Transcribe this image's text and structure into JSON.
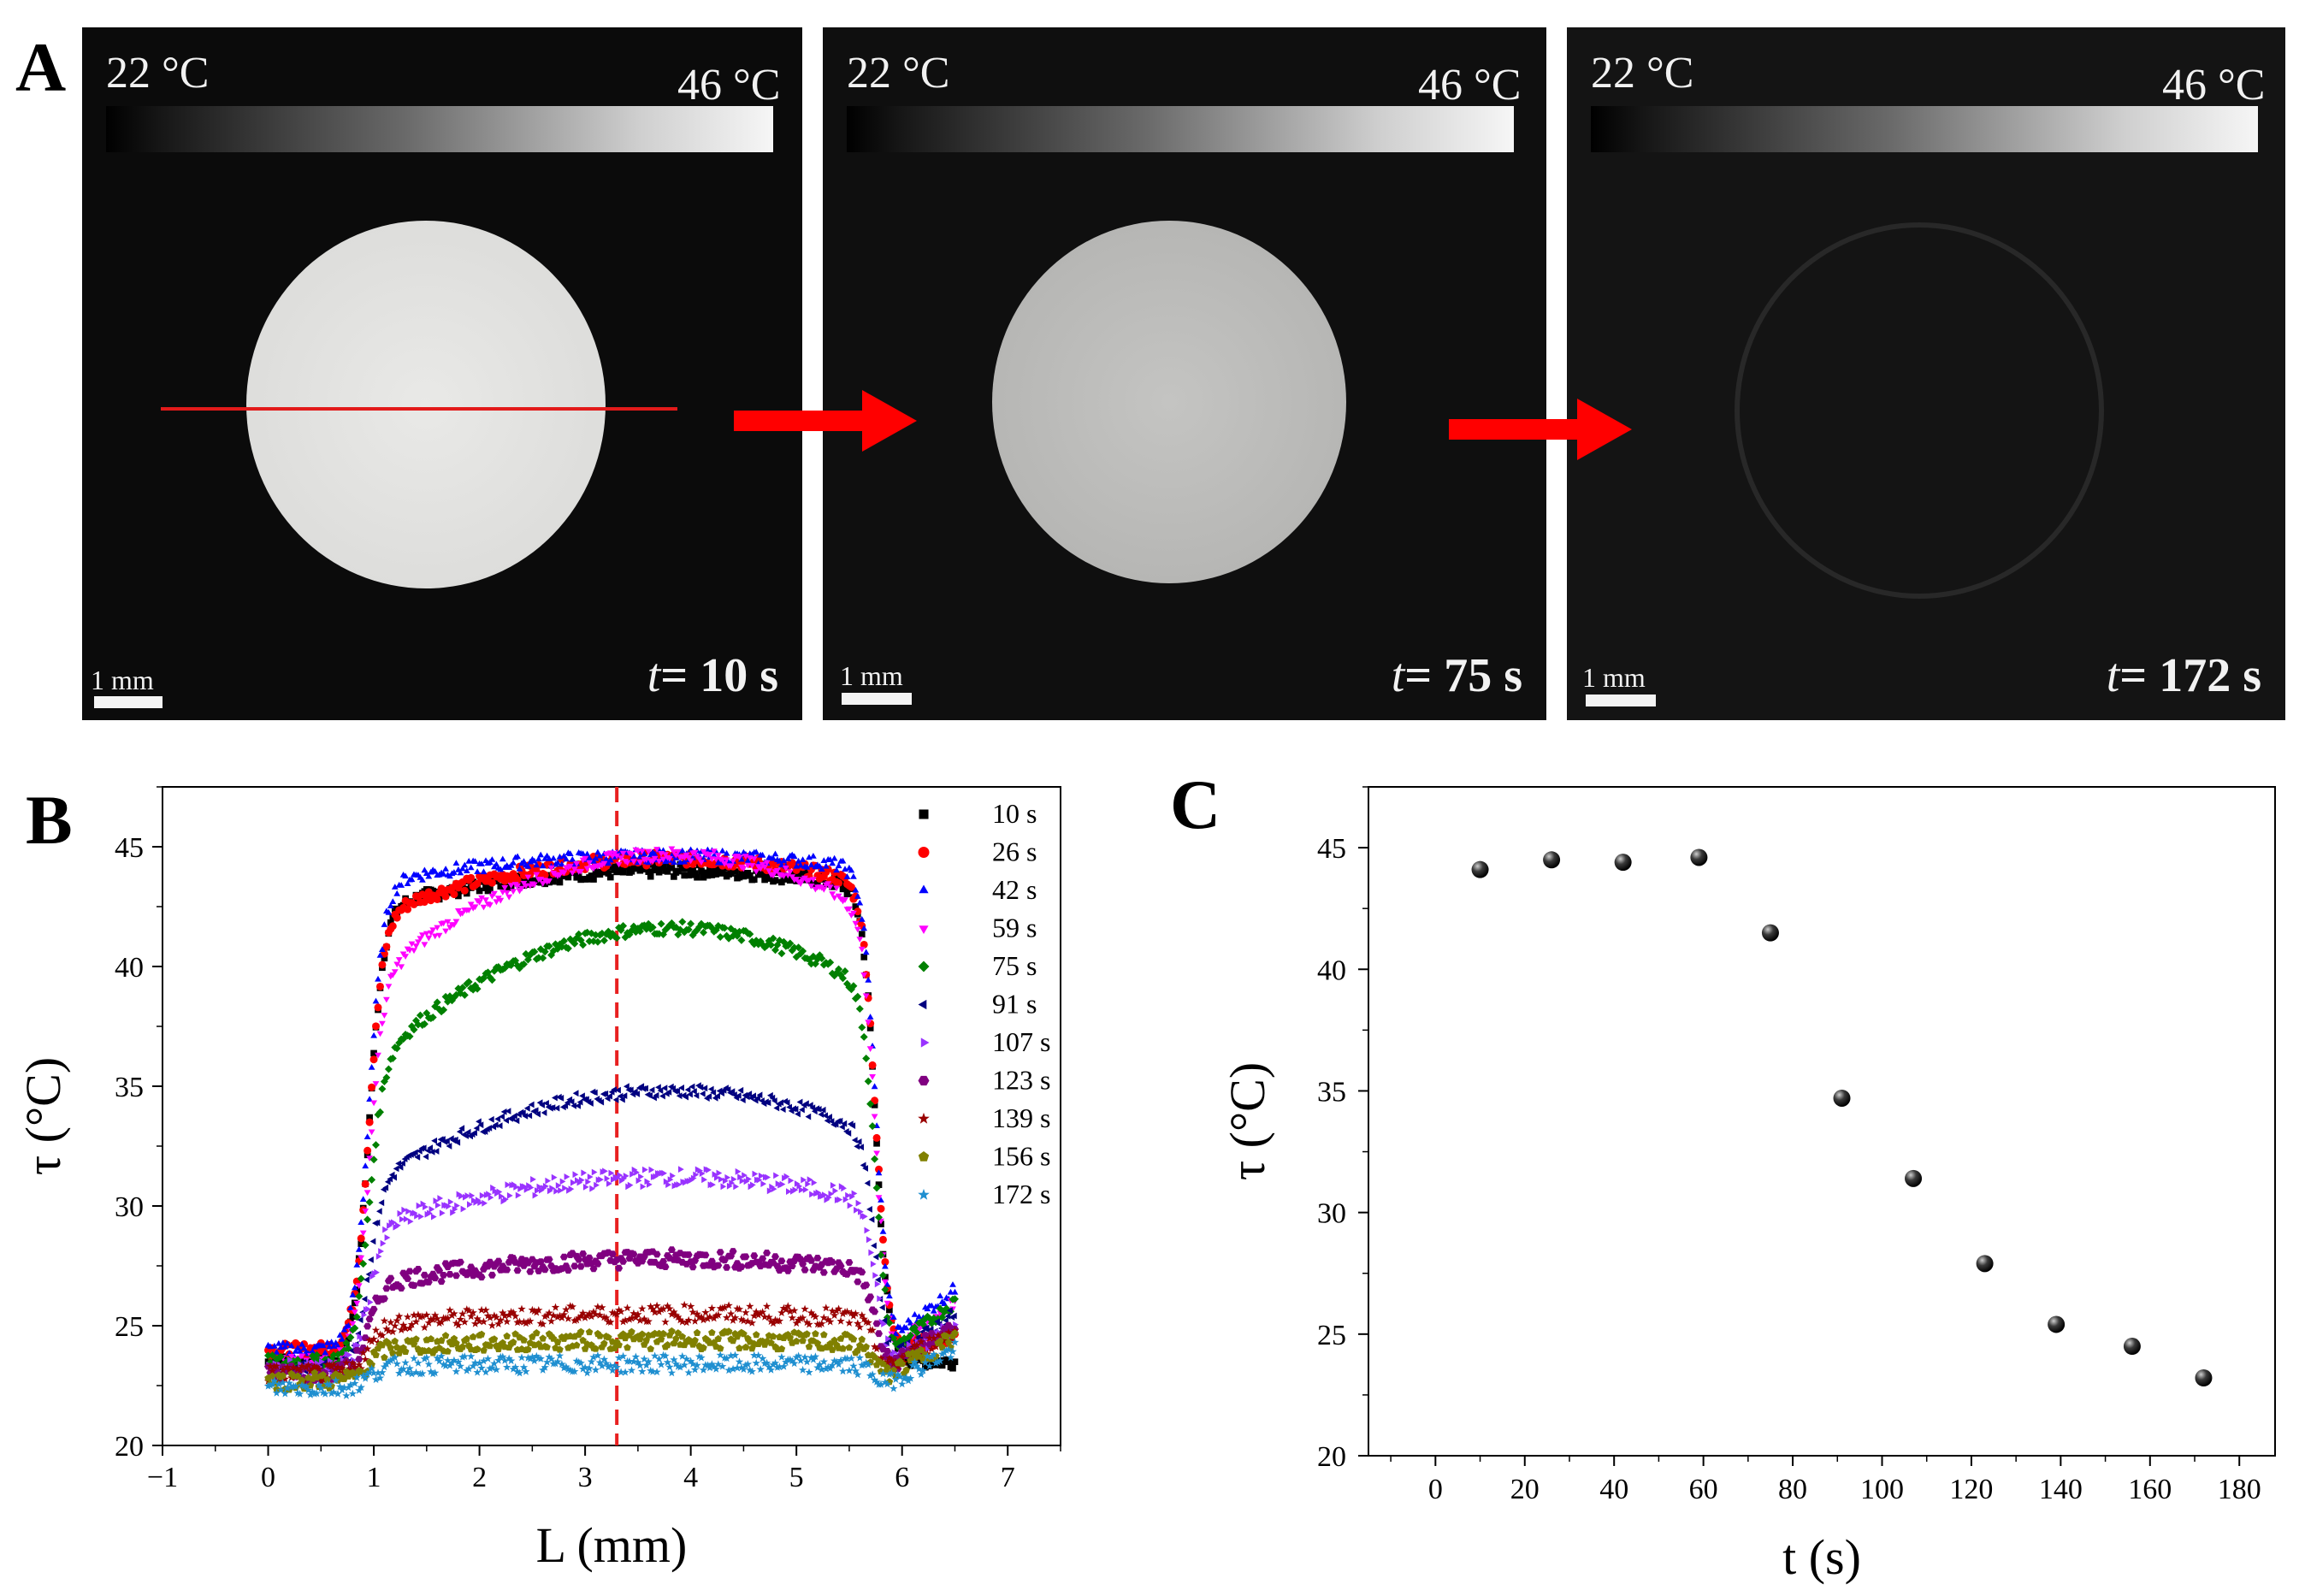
{
  "panels": {
    "a_label": "A",
    "b_label": "B",
    "c_label": "C"
  },
  "thermal_images": [
    {
      "colorbar_min": "22 °C",
      "colorbar_max": "46 °C",
      "scale_bar": "1 mm",
      "time_var": "t",
      "time_value": "= 10 s",
      "brightness": "bright"
    },
    {
      "colorbar_min": "22 °C",
      "colorbar_max": "46 °C",
      "scale_bar": "1 mm",
      "time_var": "t",
      "time_value": "= 75 s",
      "brightness": "medium"
    },
    {
      "colorbar_min": "22 °C",
      "colorbar_max": "46 °C",
      "scale_bar": "1 mm",
      "time_var": "t",
      "time_value": "= 172 s",
      "brightness": "faint"
    }
  ],
  "colors": {
    "arrow": "#ff0000",
    "profile_line": "#ff0000",
    "guide_line": "#e82020"
  },
  "chart_data": [
    {
      "type": "scatter",
      "panel": "B",
      "xlabel": "L (mm)",
      "ylabel": "τ (°C)",
      "xlim": [
        -1,
        7.5
      ],
      "ylim": [
        20,
        47.5
      ],
      "xticks": [
        -1,
        0,
        1,
        2,
        3,
        4,
        5,
        6,
        7
      ],
      "yticks": [
        20,
        25,
        30,
        35,
        40,
        45
      ],
      "vertical_guide_x": 3.3,
      "legend_position": "top-right",
      "profile_shape": {
        "x_min": 0,
        "x_max": 6.5,
        "edge_left": 0.85,
        "edge_right": 5.75
      },
      "series": [
        {
          "name": "10 s",
          "color": "#000000",
          "marker": "square",
          "base": 23.5,
          "plateau": 44.0,
          "edge_value": 42.0,
          "end_value": 23.0
        },
        {
          "name": "26 s",
          "color": "#ff0000",
          "marker": "circle",
          "base": 24.0,
          "plateau": 44.5,
          "edge_value": 41.5,
          "end_value": 24.5
        },
        {
          "name": "42 s",
          "color": "#0000ff",
          "marker": "triangle-up",
          "base": 24.0,
          "plateau": 44.6,
          "edge_value": 43.2,
          "end_value": 26.5
        },
        {
          "name": "59 s",
          "color": "#ff00ff",
          "marker": "triangle-down",
          "base": 23.5,
          "plateau": 44.7,
          "edge_value": 38.0,
          "end_value": 26.0
        },
        {
          "name": "75 s",
          "color": "#008000",
          "marker": "diamond",
          "base": 23.5,
          "plateau": 41.6,
          "edge_value": 34.5,
          "end_value": 26.0
        },
        {
          "name": "91 s",
          "color": "#000080",
          "marker": "triangle-left",
          "base": 23.2,
          "plateau": 34.8,
          "edge_value": 30.0,
          "end_value": 25.5
        },
        {
          "name": "107 s",
          "color": "#9933ff",
          "marker": "triangle-right",
          "base": 23.2,
          "plateau": 31.2,
          "edge_value": 28.5,
          "end_value": 25.0
        },
        {
          "name": "123 s",
          "color": "#800080",
          "marker": "hexagon",
          "base": 23.0,
          "plateau": 27.8,
          "edge_value": 26.5,
          "end_value": 25.0
        },
        {
          "name": "139 s",
          "color": "#990000",
          "marker": "star",
          "base": 23.0,
          "plateau": 25.5,
          "edge_value": 25.0,
          "end_value": 24.8
        },
        {
          "name": "156 s",
          "color": "#808000",
          "marker": "pentagon",
          "base": 22.7,
          "plateau": 24.4,
          "edge_value": 24.0,
          "end_value": 24.5
        },
        {
          "name": "172 s",
          "color": "#1f8fd0",
          "marker": "star",
          "base": 22.4,
          "plateau": 23.4,
          "edge_value": 23.3,
          "end_value": 24.0
        }
      ]
    },
    {
      "type": "scatter",
      "panel": "C",
      "xlabel": "t (s)",
      "ylabel": "τ (°C)",
      "xlim": [
        -15,
        188
      ],
      "ylim": [
        20,
        47.5
      ],
      "xticks": [
        0,
        20,
        40,
        60,
        80,
        100,
        120,
        140,
        160,
        180
      ],
      "yticks": [
        20,
        25,
        30,
        35,
        40,
        45
      ],
      "x": [
        10,
        26,
        42,
        59,
        75,
        91,
        107,
        123,
        139,
        156,
        172
      ],
      "y": [
        44.1,
        44.5,
        44.4,
        44.6,
        41.5,
        34.7,
        31.4,
        27.9,
        25.4,
        24.5,
        23.2
      ],
      "color": "#000000"
    }
  ]
}
